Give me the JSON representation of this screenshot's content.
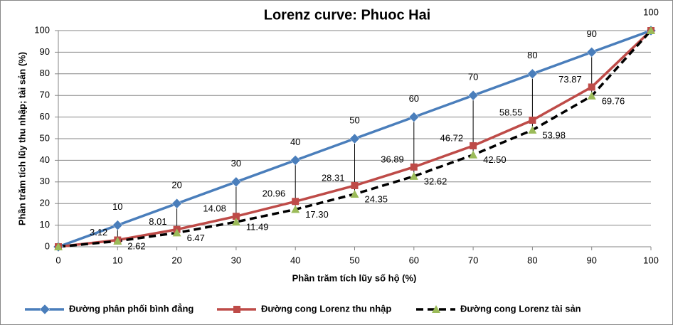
{
  "chart_data": {
    "type": "line",
    "title": "Lorenz curve: Phuoc Hai",
    "x_label": "Phần trăm tích lũy số hộ (%)",
    "y_label": "Phần trăm tích lũy thu nhập; tài sản (%)",
    "x": [
      0,
      10,
      20,
      30,
      40,
      50,
      60,
      70,
      80,
      90,
      100
    ],
    "series": [
      {
        "name": "Đường phân phối bình đẳng",
        "color": "#4a7ebb",
        "marker": "diamond",
        "dash": false,
        "values": [
          0,
          10,
          20,
          30,
          40,
          50,
          60,
          70,
          80,
          90,
          100
        ],
        "value_labels": [
          null,
          "10",
          "20",
          "30",
          "40",
          "50",
          "60",
          "70",
          "80",
          "90",
          "100"
        ]
      },
      {
        "name": "Đường cong Lorenz thu nhập",
        "color": "#be4b48",
        "marker": "square",
        "dash": false,
        "values": [
          0,
          3.12,
          8.01,
          14.08,
          20.96,
          28.31,
          36.89,
          46.72,
          58.55,
          73.87,
          100
        ],
        "value_labels": [
          null,
          "3.12",
          "8.01",
          "14.08",
          "20.96",
          "28.31",
          "36.89",
          "46.72",
          "58.55",
          "73.87",
          null
        ]
      },
      {
        "name": "Đường cong Lorenz tài sản",
        "color": "#000000",
        "marker_color": "#9bbb59",
        "marker": "triangle",
        "dash": true,
        "values": [
          0,
          2.62,
          6.47,
          11.49,
          17.3,
          24.35,
          32.62,
          42.5,
          53.98,
          69.76,
          100
        ],
        "value_labels": [
          null,
          "2.62",
          "6.47",
          "11.49",
          "17.30",
          "24.35",
          "32.62",
          "42.50",
          "53.98",
          "69.76",
          null
        ]
      }
    ],
    "xlim": [
      0,
      100
    ],
    "xticks": [
      0,
      10,
      20,
      30,
      40,
      50,
      60,
      70,
      80,
      90,
      100
    ],
    "ylim": [
      0,
      100
    ],
    "yticks": [
      0,
      10,
      20,
      30,
      40,
      50,
      60,
      70,
      80,
      90,
      100
    ],
    "grid": true,
    "drop_lines": true,
    "legend": "bottom"
  }
}
